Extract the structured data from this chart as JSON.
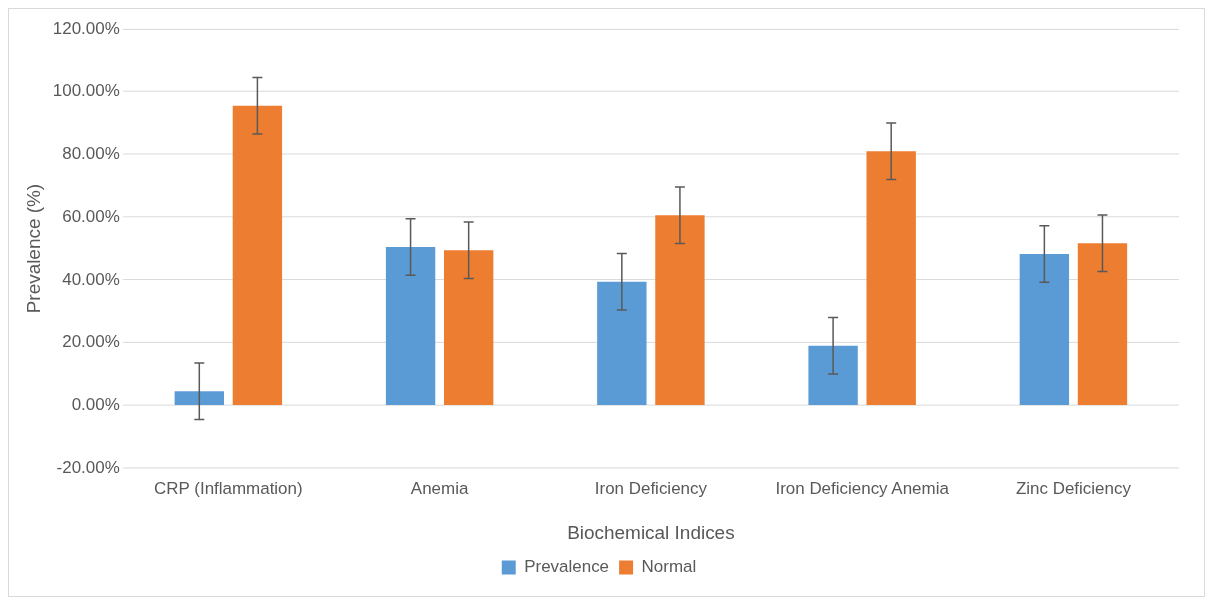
{
  "chart_data": {
    "type": "bar",
    "xlabel": "Biochemical Indices",
    "ylabel": "Prevalence (%)",
    "categories": [
      "CRP (Inflammation)",
      "Anemia",
      "Iron Deficiency",
      "Iron Deficiency Anemia",
      "Zinc Deficiency"
    ],
    "series": [
      {
        "name": "Prevalence",
        "color": "#5b9bd5",
        "values": [
          4.5,
          50.5,
          39.4,
          19.0,
          48.3
        ],
        "errors": [
          9,
          9,
          9,
          9,
          9
        ]
      },
      {
        "name": "Normal",
        "color": "#ed7d31",
        "values": [
          95.5,
          49.5,
          60.6,
          81.0,
          51.7
        ],
        "errors": [
          9,
          9,
          9,
          9,
          9
        ]
      }
    ],
    "ylim": [
      -20,
      120
    ],
    "yticks": [
      {
        "value": -20,
        "label": "-20.00%"
      },
      {
        "value": 0,
        "label": "0.00%"
      },
      {
        "value": 20,
        "label": "20.00%"
      },
      {
        "value": 40,
        "label": "40.00%"
      },
      {
        "value": 60,
        "label": "60.00%"
      },
      {
        "value": 80,
        "label": "80.00%"
      },
      {
        "value": 100,
        "label": "100.00%"
      },
      {
        "value": 120,
        "label": "120.00%"
      }
    ],
    "grid": "y",
    "legend": "bottom"
  }
}
